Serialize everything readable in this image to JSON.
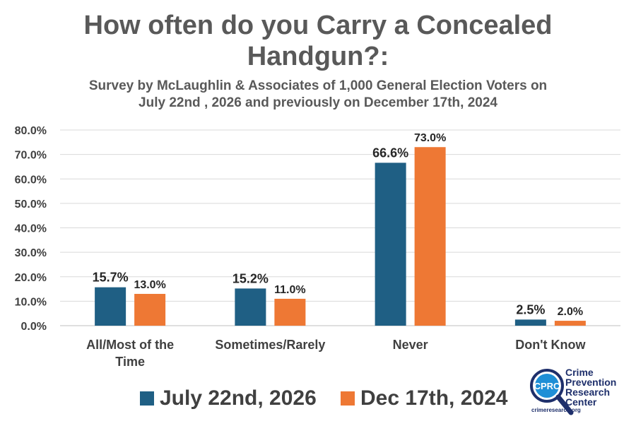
{
  "header": {
    "title_line1": "How often do you Carry a Concealed",
    "title_line2": "Handgun?:",
    "subtitle_line1": "Survey by McLaughlin & Associates of 1,000 General Election Voters on",
    "subtitle_line2": "July 22nd , 2026 and previously on December 17th, 2024"
  },
  "chart_data": {
    "type": "bar",
    "categories": [
      "All/Most of the Time",
      "Sometimes/Rarely",
      "Never",
      "Don't Know"
    ],
    "category_label_lines": [
      [
        "All/Most of the",
        "Time"
      ],
      [
        "Sometimes/Rarely"
      ],
      [
        "Never"
      ],
      [
        "Don't Know"
      ]
    ],
    "series": [
      {
        "name": "July 22nd, 2026",
        "values": [
          15.7,
          15.2,
          66.6,
          2.5
        ],
        "labels": [
          "15.7%",
          "15.2%",
          "66.6%",
          "2.5%"
        ],
        "color": "#1f5f84"
      },
      {
        "name": "Dec 17th, 2024",
        "values": [
          13.0,
          11.0,
          73.0,
          2.0
        ],
        "labels": [
          "13.0%",
          "11.0%",
          "73.0%",
          "2.0%"
        ],
        "color": "#ee7834"
      }
    ],
    "ylim": [
      0,
      80
    ],
    "yticks": [
      0,
      10,
      20,
      30,
      40,
      50,
      60,
      70,
      80
    ],
    "ytick_labels": [
      "0.0%",
      "10.0%",
      "20.0%",
      "30.0%",
      "40.0%",
      "50.0%",
      "60.0%",
      "70.0%",
      "80.0%"
    ],
    "grid": true,
    "legend_position": "bottom"
  },
  "logo": {
    "acronym": "CPRC",
    "name_lines": [
      "Crime",
      "Prevention",
      "Research",
      "Center"
    ],
    "url": "crimeresearch.org"
  }
}
